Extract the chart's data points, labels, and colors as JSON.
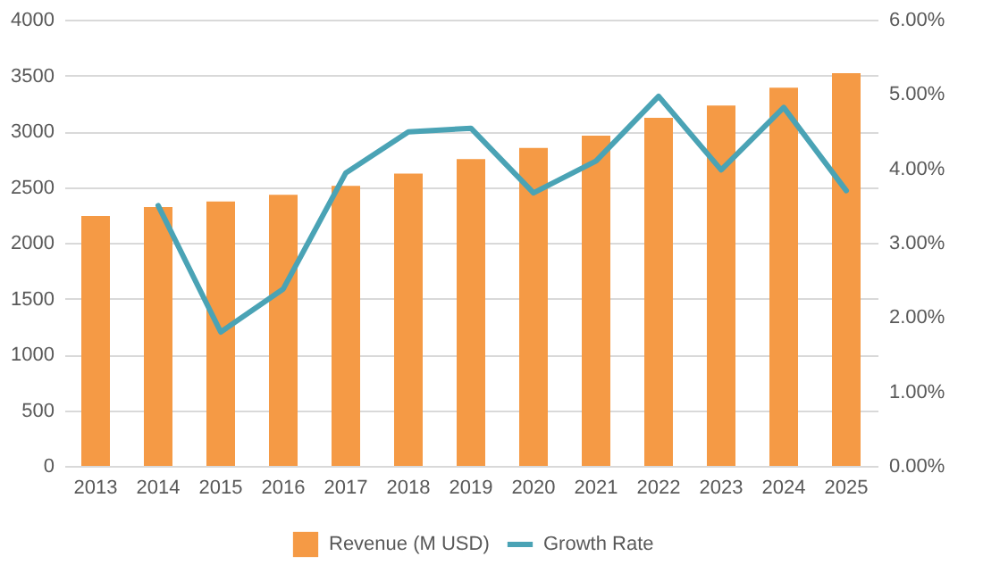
{
  "chart_data": {
    "type": "bar",
    "categories": [
      "2013",
      "2014",
      "2015",
      "2016",
      "2017",
      "2018",
      "2019",
      "2020",
      "2021",
      "2022",
      "2023",
      "2024",
      "2025"
    ],
    "series": [
      {
        "name": "Revenue (M USD)",
        "color": "#f59a45",
        "values": [
          2240,
          2320,
          2370,
          2430,
          2510,
          2620,
          2750,
          2850,
          2960,
          3120,
          3230,
          3390,
          3520
        ]
      },
      {
        "name": "Growth Rate",
        "type": "line",
        "axis": "y2",
        "color": "#4aa3b5",
        "values": [
          null,
          3.5,
          1.8,
          2.38,
          3.94,
          4.49,
          4.54,
          3.67,
          4.1,
          4.97,
          3.98,
          4.82,
          3.7
        ]
      }
    ],
    "ylim": [
      0,
      4000
    ],
    "yticks": [
      0,
      500,
      1000,
      1500,
      2000,
      2500,
      3000,
      3500,
      4000
    ],
    "y2lim": [
      0,
      6
    ],
    "y2ticks": [
      {
        "value": 0,
        "label": "0.00%"
      },
      {
        "value": 1,
        "label": "1.00%"
      },
      {
        "value": 2,
        "label": "2.00%"
      },
      {
        "value": 3,
        "label": "3.00%"
      },
      {
        "value": 4,
        "label": "4.00%"
      },
      {
        "value": 5,
        "label": "5.00%"
      },
      {
        "value": 6,
        "label": "6.00%"
      }
    ],
    "grid": "y",
    "legend": "bottom"
  }
}
